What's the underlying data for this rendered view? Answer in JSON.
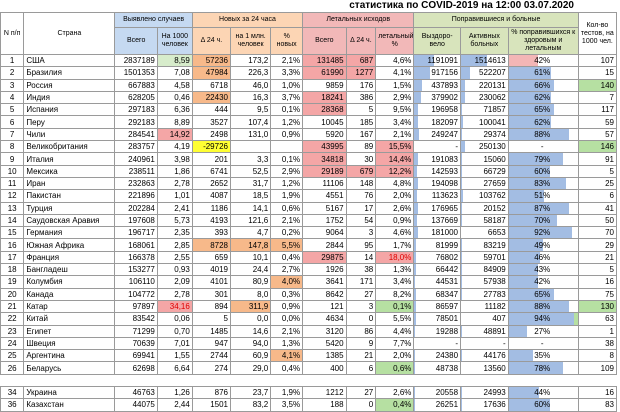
{
  "title": "статистика по COVID-2019 на 12:00 03.07.2020",
  "headers": {
    "num": "N п/п",
    "country": "Страна",
    "detected": "Выявлено случаев",
    "detected_total": "Всего",
    "detected_per": "На 1000 человек",
    "new24": "Новых за 24 часа",
    "new24_delta": "Δ 24 ч.",
    "new24_permln": "на 1 млн. человек",
    "new24_pct": "% новых",
    "lethal": "Летальных исходов",
    "lethal_total": "Всего",
    "lethal_delta": "Δ 24 ч.",
    "lethal_pct": "летальный %",
    "recovered": "Поправившиеся и больные",
    "recovered_total": "Выздоро-вело",
    "active": "Активных больных",
    "recovered_pct": "% поправившихся к здоровым и летальным",
    "tests": "Кол-во тестов, на 1000 чел."
  },
  "rows": [
    {
      "n": "1",
      "country": "США",
      "total": "2837189",
      "per": "8,59",
      "delta": "57236",
      "permln": "173,2",
      "pct": "2,1%",
      "lt": "131485",
      "ld": "687",
      "lp": "4,6%",
      "rec": "1191091",
      "act": "1514613",
      "rp": "42%",
      "tests": "107",
      "c_per": "c-lgreen",
      "c_delta": "c-orange",
      "c_lt": "c-red",
      "c_ld": "c-red",
      "c_tests": "",
      "bar_rec": 0.42,
      "bar_act": 0.55,
      "bar_pct": 0.42,
      "rp_red": true
    },
    {
      "n": "2",
      "country": "Бразилия",
      "total": "1501353",
      "per": "7,08",
      "delta": "47984",
      "permln": "226,3",
      "pct": "3,3%",
      "lt": "61990",
      "ld": "1277",
      "lp": "4,1%",
      "rec": "917156",
      "act": "522207",
      "rp": "61%",
      "tests": "15",
      "c_per": "",
      "c_delta": "c-orange",
      "c_lt": "c-red",
      "c_ld": "c-red",
      "c_tests": "",
      "bar_rec": 0.35,
      "bar_act": 0.2,
      "bar_pct": 0.61
    },
    {
      "n": "3",
      "country": "Россия",
      "total": "667883",
      "per": "4,58",
      "delta": "6718",
      "permln": "46,0",
      "pct": "1,0%",
      "lt": "9859",
      "ld": "176",
      "lp": "1,5%",
      "rec": "437893",
      "act": "220131",
      "rp": "66%",
      "tests": "140",
      "c_per": "",
      "c_delta": "",
      "c_lt": "",
      "c_ld": "",
      "c_tests": "c-green",
      "bar_rec": 0.17,
      "bar_act": 0.08,
      "bar_pct": 0.66
    },
    {
      "n": "4",
      "country": "Индия",
      "total": "628205",
      "per": "0,46",
      "delta": "22430",
      "permln": "16,3",
      "pct": "3,7%",
      "lt": "18241",
      "ld": "386",
      "lp": "2,9%",
      "rec": "379902",
      "act": "230062",
      "rp": "62%",
      "tests": "7",
      "c_per": "",
      "c_delta": "c-orange",
      "c_lt": "c-red",
      "c_ld": "",
      "c_tests": "",
      "bar_rec": 0.15,
      "bar_act": 0.08,
      "bar_pct": 0.62
    },
    {
      "n": "5",
      "country": "Испания",
      "total": "297183",
      "per": "6,36",
      "delta": "444",
      "permln": "9,5",
      "pct": "0,1%",
      "lt": "28368",
      "ld": "5",
      "lp": "9,5%",
      "rec": "196958",
      "act": "71857",
      "rp": "65%",
      "tests": "117",
      "c_per": "",
      "c_delta": "",
      "c_lt": "c-red",
      "c_ld": "",
      "c_tests": "",
      "bar_rec": 0.08,
      "bar_act": 0.03,
      "bar_pct": 0.65
    },
    {
      "n": "6",
      "country": "Перу",
      "total": "292183",
      "per": "8,89",
      "delta": "3527",
      "permln": "107,4",
      "pct": "1,2%",
      "lt": "10045",
      "ld": "185",
      "lp": "3,4%",
      "rec": "182097",
      "act": "100041",
      "rp": "62%",
      "tests": "59",
      "c_per": "",
      "c_delta": "",
      "c_lt": "",
      "c_ld": "",
      "c_tests": "",
      "bar_rec": 0.07,
      "bar_act": 0.04,
      "bar_pct": 0.62
    },
    {
      "n": "7",
      "country": "Чили",
      "total": "284541",
      "per": "14,92",
      "delta": "2498",
      "permln": "131,0",
      "pct": "0,9%",
      "lt": "5920",
      "ld": "167",
      "lp": "2,1%",
      "rec": "249247",
      "act": "29374",
      "rp": "88%",
      "tests": "57",
      "c_per": "c-red",
      "c_delta": "",
      "c_lt": "",
      "c_ld": "",
      "c_tests": "",
      "bar_rec": 0.1,
      "bar_act": 0.01,
      "bar_pct": 0.88
    },
    {
      "n": "8",
      "country": "Великобритания",
      "total": "283757",
      "per": "4,19",
      "delta": "-29726",
      "permln": "",
      "pct": "",
      "lt": "43995",
      "ld": "89",
      "lp": "15,5%",
      "rec": "-",
      "act": "250130",
      "rp": "-",
      "tests": "146",
      "c_per": "",
      "c_delta": "c-yellow",
      "c_lt": "c-red",
      "c_ld": "",
      "c_lp": "c-red",
      "c_tests": "c-green",
      "bar_rec": 0,
      "bar_act": 0.09,
      "bar_pct": 0
    },
    {
      "n": "9",
      "country": "Италия",
      "total": "240961",
      "per": "3,98",
      "delta": "201",
      "permln": "3,3",
      "pct": "0,1%",
      "lt": "34818",
      "ld": "30",
      "lp": "14,4%",
      "rec": "191083",
      "act": "15060",
      "rp": "79%",
      "tests": "91",
      "c_per": "",
      "c_delta": "",
      "c_lt": "c-red",
      "c_ld": "",
      "c_lp": "c-red",
      "c_tests": "",
      "bar_rec": 0.08,
      "bar_act": 0.01,
      "bar_pct": 0.79
    },
    {
      "n": "10",
      "country": "Мексика",
      "total": "238511",
      "per": "1,86",
      "delta": "6741",
      "permln": "52,5",
      "pct": "2,9%",
      "lt": "29189",
      "ld": "679",
      "lp": "12,2%",
      "rec": "142593",
      "act": "66729",
      "rp": "60%",
      "tests": "5",
      "c_per": "",
      "c_delta": "",
      "c_lt": "c-red",
      "c_ld": "c-red",
      "c_lp": "c-red",
      "c_tests": "",
      "bar_rec": 0.06,
      "bar_act": 0.03,
      "bar_pct": 0.6
    },
    {
      "n": "11",
      "country": "Иран",
      "total": "232863",
      "per": "2,78",
      "delta": "2652",
      "permln": "31,7",
      "pct": "1,2%",
      "lt": "11106",
      "ld": "148",
      "lp": "4,8%",
      "rec": "194098",
      "act": "27659",
      "rp": "83%",
      "tests": "25",
      "c_per": "",
      "c_delta": "",
      "c_lt": "",
      "c_ld": "",
      "c_tests": "",
      "bar_rec": 0.08,
      "bar_act": 0.01,
      "bar_pct": 0.83
    },
    {
      "n": "12",
      "country": "Пакистан",
      "total": "221896",
      "per": "1,01",
      "delta": "4087",
      "permln": "18,5",
      "pct": "1,9%",
      "lt": "4551",
      "ld": "76",
      "lp": "2,0%",
      "rec": "113623",
      "act": "103762",
      "rp": "51%",
      "tests": "6",
      "c_per": "",
      "c_delta": "",
      "c_lt": "",
      "c_ld": "",
      "c_tests": "",
      "bar_rec": 0.05,
      "bar_act": 0.04,
      "bar_pct": 0.51
    },
    {
      "n": "13",
      "country": "Турция",
      "total": "202284",
      "per": "2,41",
      "delta": "1186",
      "permln": "14,1",
      "pct": "0,6%",
      "lt": "5167",
      "ld": "17",
      "lp": "2,6%",
      "rec": "176965",
      "act": "20152",
      "rp": "87%",
      "tests": "41",
      "c_per": "",
      "c_delta": "",
      "c_lt": "",
      "c_ld": "",
      "c_tests": "",
      "bar_rec": 0.07,
      "bar_act": 0.01,
      "bar_pct": 0.87
    },
    {
      "n": "14",
      "country": "Саудовская Аравия",
      "total": "197608",
      "per": "5,73",
      "delta": "4193",
      "permln": "121,6",
      "pct": "2,1%",
      "lt": "1752",
      "ld": "54",
      "lp": "0,9%",
      "rec": "137669",
      "act": "58187",
      "rp": "70%",
      "tests": "50",
      "c_per": "",
      "c_delta": "",
      "c_lt": "",
      "c_ld": "",
      "c_tests": "",
      "bar_rec": 0.06,
      "bar_act": 0.02,
      "bar_pct": 0.7
    },
    {
      "n": "15",
      "country": "Германия",
      "total": "196717",
      "per": "2,35",
      "delta": "393",
      "permln": "4,7",
      "pct": "0,2%",
      "lt": "9064",
      "ld": "3",
      "lp": "4,6%",
      "rec": "181000",
      "act": "6653",
      "rp": "92%",
      "tests": "70",
      "c_per": "",
      "c_delta": "",
      "c_lt": "",
      "c_ld": "",
      "c_tests": "",
      "bar_rec": 0.07,
      "bar_act": 0.0,
      "bar_pct": 0.92
    },
    {
      "n": "16",
      "country": "Южная Африка",
      "total": "168061",
      "per": "2,85",
      "delta": "8728",
      "permln": "147,8",
      "pct": "5,5%",
      "lt": "2844",
      "ld": "95",
      "lp": "1,7%",
      "rec": "81999",
      "act": "83219",
      "rp": "49%",
      "tests": "29",
      "c_per": "",
      "c_delta": "c-orange",
      "c_permln": "c-orange",
      "c_pct": "c-orange",
      "c_lt": "",
      "c_ld": "",
      "c_tests": "",
      "bar_rec": 0.03,
      "bar_act": 0.03,
      "bar_pct": 0.49
    },
    {
      "n": "17",
      "country": "Франция",
      "total": "166378",
      "per": "2,55",
      "delta": "659",
      "permln": "10,1",
      "pct": "0,4%",
      "lt": "29875",
      "ld": "14",
      "lp": "18,0%",
      "rec": "76802",
      "act": "59701",
      "rp": "46%",
      "tests": "21",
      "c_per": "",
      "c_delta": "",
      "c_lt": "c-red",
      "c_ld": "",
      "c_lp": "c-red",
      "red_lp": true,
      "c_tests": "",
      "bar_rec": 0.03,
      "bar_act": 0.02,
      "bar_pct": 0.46
    },
    {
      "n": "18",
      "country": "Бангладеш",
      "total": "153277",
      "per": "0,93",
      "delta": "4019",
      "permln": "24,4",
      "pct": "2,7%",
      "lt": "1926",
      "ld": "38",
      "lp": "1,3%",
      "rec": "66442",
      "act": "84909",
      "rp": "43%",
      "tests": "5",
      "c_per": "",
      "c_delta": "",
      "c_lt": "",
      "c_ld": "",
      "c_tests": "",
      "bar_rec": 0.03,
      "bar_act": 0.03,
      "bar_pct": 0.43
    },
    {
      "n": "19",
      "country": "Колумбия",
      "total": "106110",
      "per": "2,09",
      "delta": "4101",
      "permln": "80,9",
      "pct": "4,0%",
      "lt": "3641",
      "ld": "171",
      "lp": "3,4%",
      "rec": "44531",
      "act": "57938",
      "rp": "42%",
      "tests": "16",
      "c_per": "",
      "c_delta": "",
      "c_pct": "c-orange",
      "c_lt": "",
      "c_ld": "",
      "c_tests": "",
      "bar_rec": 0.02,
      "bar_act": 0.02,
      "bar_pct": 0.42
    },
    {
      "n": "20",
      "country": "Канада",
      "total": "104772",
      "per": "2,78",
      "delta": "301",
      "permln": "8,0",
      "pct": "0,3%",
      "lt": "8642",
      "ld": "27",
      "lp": "8,2%",
      "rec": "68347",
      "act": "27783",
      "rp": "65%",
      "tests": "75",
      "c_per": "",
      "c_delta": "",
      "c_lt": "",
      "c_ld": "",
      "c_tests": "",
      "bar_rec": 0.03,
      "bar_act": 0.01,
      "bar_pct": 0.65
    },
    {
      "n": "21",
      "country": "Катар",
      "total": "97897",
      "per": "34,16",
      "delta": "894",
      "permln": "311,9",
      "pct": "0,9%",
      "lt": "121",
      "ld": "3",
      "lp": "0,1%",
      "rec": "86597",
      "act": "11182",
      "rp": "88%",
      "tests": "130",
      "c_per": "c-red",
      "red_per": true,
      "c_delta": "",
      "c_permln": "c-orange",
      "c_lt": "",
      "c_ld": "",
      "c_lp": "c-green",
      "c_tests": "c-green",
      "bar_rec": 0.03,
      "bar_act": 0.0,
      "bar_pct": 0.88
    },
    {
      "n": "22",
      "country": "Китай",
      "total": "83542",
      "per": "0,06",
      "delta": "5",
      "permln": "0,0",
      "pct": "0,0%",
      "lt": "4634",
      "ld": "0",
      "lp": "5,5%",
      "rec": "78501",
      "act": "407",
      "rp": "94%",
      "tests": "63",
      "c_per": "",
      "c_delta": "",
      "c_lt": "",
      "c_ld": "",
      "c_tests": "",
      "c_rp": "c-green",
      "bar_rec": 0.03,
      "bar_act": 0.0,
      "bar_pct": 0.94
    },
    {
      "n": "23",
      "country": "Египет",
      "total": "71299",
      "per": "0,70",
      "delta": "1485",
      "permln": "14,6",
      "pct": "2,1%",
      "lt": "3120",
      "ld": "86",
      "lp": "4,4%",
      "rec": "19288",
      "act": "48891",
      "rp": "27%",
      "tests": "1",
      "c_per": "",
      "c_delta": "",
      "c_lt": "",
      "c_ld": "",
      "c_tests": "",
      "bar_rec": 0.01,
      "bar_act": 0.02,
      "bar_pct": 0.27
    },
    {
      "n": "24",
      "country": "Швеция",
      "total": "70639",
      "per": "7,01",
      "delta": "947",
      "permln": "94,0",
      "pct": "1,3%",
      "lt": "5420",
      "ld": "9",
      "lp": "7,7%",
      "rec": "-",
      "act": "-",
      "rp": "-",
      "tests": "38",
      "c_per": "",
      "c_delta": "",
      "c_lt": "",
      "c_ld": "",
      "c_tests": "",
      "bar_rec": 0,
      "bar_act": 0,
      "bar_pct": 0
    },
    {
      "n": "25",
      "country": "Аргентина",
      "total": "69941",
      "per": "1,55",
      "delta": "2744",
      "permln": "60,9",
      "pct": "4,1%",
      "lt": "1385",
      "ld": "21",
      "lp": "2,0%",
      "rec": "24380",
      "act": "44176",
      "rp": "35%",
      "tests": "8",
      "c_per": "",
      "c_delta": "",
      "c_pct": "c-orange",
      "c_lt": "",
      "c_ld": "",
      "c_tests": "",
      "bar_rec": 0.01,
      "bar_act": 0.02,
      "bar_pct": 0.35
    },
    {
      "n": "26",
      "country": "Беларусь",
      "total": "62698",
      "per": "6,64",
      "delta": "274",
      "permln": "29,0",
      "pct": "0,4%",
      "lt": "400",
      "ld": "6",
      "lp": "0,6%",
      "rec": "48738",
      "act": "13560",
      "rp": "78%",
      "tests": "109",
      "c_per": "",
      "c_delta": "",
      "c_lt": "",
      "c_ld": "",
      "c_lp": "c-green",
      "c_tests": "",
      "bar_rec": 0.02,
      "bar_act": 0.0,
      "bar_pct": 0.78
    }
  ],
  "rows_extra": [
    {
      "n": "34",
      "country": "Украина",
      "total": "46763",
      "per": "1,26",
      "delta": "876",
      "permln": "23,7",
      "pct": "1,9%",
      "lt": "1212",
      "ld": "27",
      "lp": "2,6%",
      "rec": "20558",
      "act": "24993",
      "rp": "44%",
      "tests": "16",
      "c_per": "",
      "c_delta": "",
      "c_lt": "",
      "c_ld": "",
      "c_tests": "",
      "bar_rec": 0.01,
      "bar_act": 0.01,
      "bar_pct": 0.44
    },
    {
      "n": "36",
      "country": "Казахстан",
      "total": "44075",
      "per": "2,44",
      "delta": "1501",
      "permln": "83,2",
      "pct": "3,5%",
      "lt": "188",
      "ld": "0",
      "lp": "0,4%",
      "rec": "26251",
      "act": "17636",
      "rp": "60%",
      "tests": "83",
      "c_per": "",
      "c_delta": "",
      "c_lt": "",
      "c_ld": "",
      "c_lp": "c-green",
      "c_tests": "",
      "bar_rec": 0.01,
      "bar_act": 0.01,
      "bar_pct": 0.6
    }
  ]
}
